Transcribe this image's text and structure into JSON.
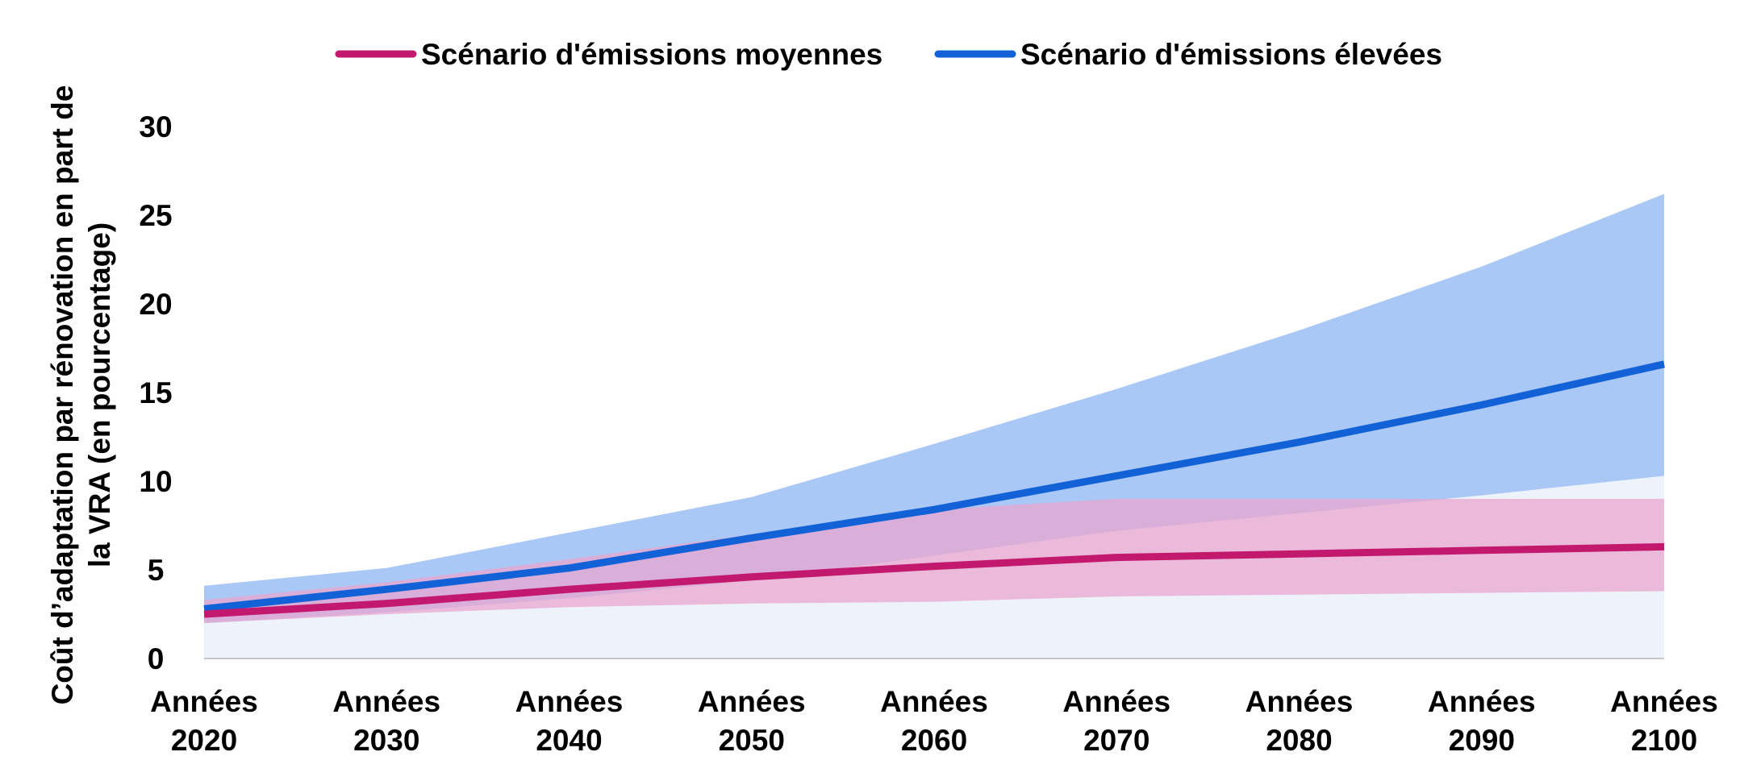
{
  "chart_data": {
    "type": "area",
    "ylabel_lines": [
      "Coût d’adaptation par rénovation en part de",
      "la VRA (en pourcentage)"
    ],
    "ylim": [
      0,
      30
    ],
    "yticks": [
      0,
      5,
      10,
      15,
      20,
      25,
      30
    ],
    "categories": [
      [
        "Années",
        "2020"
      ],
      [
        "Années",
        "2030"
      ],
      [
        "Années",
        "2040"
      ],
      [
        "Années",
        "2050"
      ],
      [
        "Années",
        "2060"
      ],
      [
        "Années",
        "2070"
      ],
      [
        "Années",
        "2080"
      ],
      [
        "Années",
        "2090"
      ],
      [
        "Années",
        "2100"
      ]
    ],
    "grid": false,
    "legend_position": "top",
    "colors": {
      "medium_line": "#C2186E",
      "medium_band": "#EAA6CF",
      "high_line": "#1261D6",
      "high_band": "#A9C8F5",
      "background_band": "#EEF3FB",
      "axis": "#C8C8C8"
    },
    "series": [
      {
        "name": "Scénario d'émissions moyennes",
        "values": [
          2.5,
          3.1,
          3.9,
          4.6,
          5.2,
          5.7,
          5.9,
          6.1,
          6.3
        ],
        "lower": [
          2.0,
          2.5,
          2.9,
          3.1,
          3.2,
          3.5,
          3.6,
          3.7,
          3.8
        ],
        "upper": [
          3.3,
          4.3,
          5.6,
          7.0,
          8.4,
          9.0,
          9.0,
          9.0,
          9.0
        ]
      },
      {
        "name": "Scénario d'émissions élevées",
        "values": [
          2.8,
          3.9,
          5.1,
          6.8,
          8.4,
          10.3,
          12.2,
          14.3,
          16.6
        ],
        "lower": [
          2.0,
          2.6,
          3.4,
          4.4,
          5.8,
          7.2,
          8.2,
          9.2,
          10.3
        ],
        "upper": [
          4.1,
          5.1,
          7.1,
          9.1,
          12.1,
          15.2,
          18.5,
          22.1,
          26.2
        ]
      }
    ]
  }
}
